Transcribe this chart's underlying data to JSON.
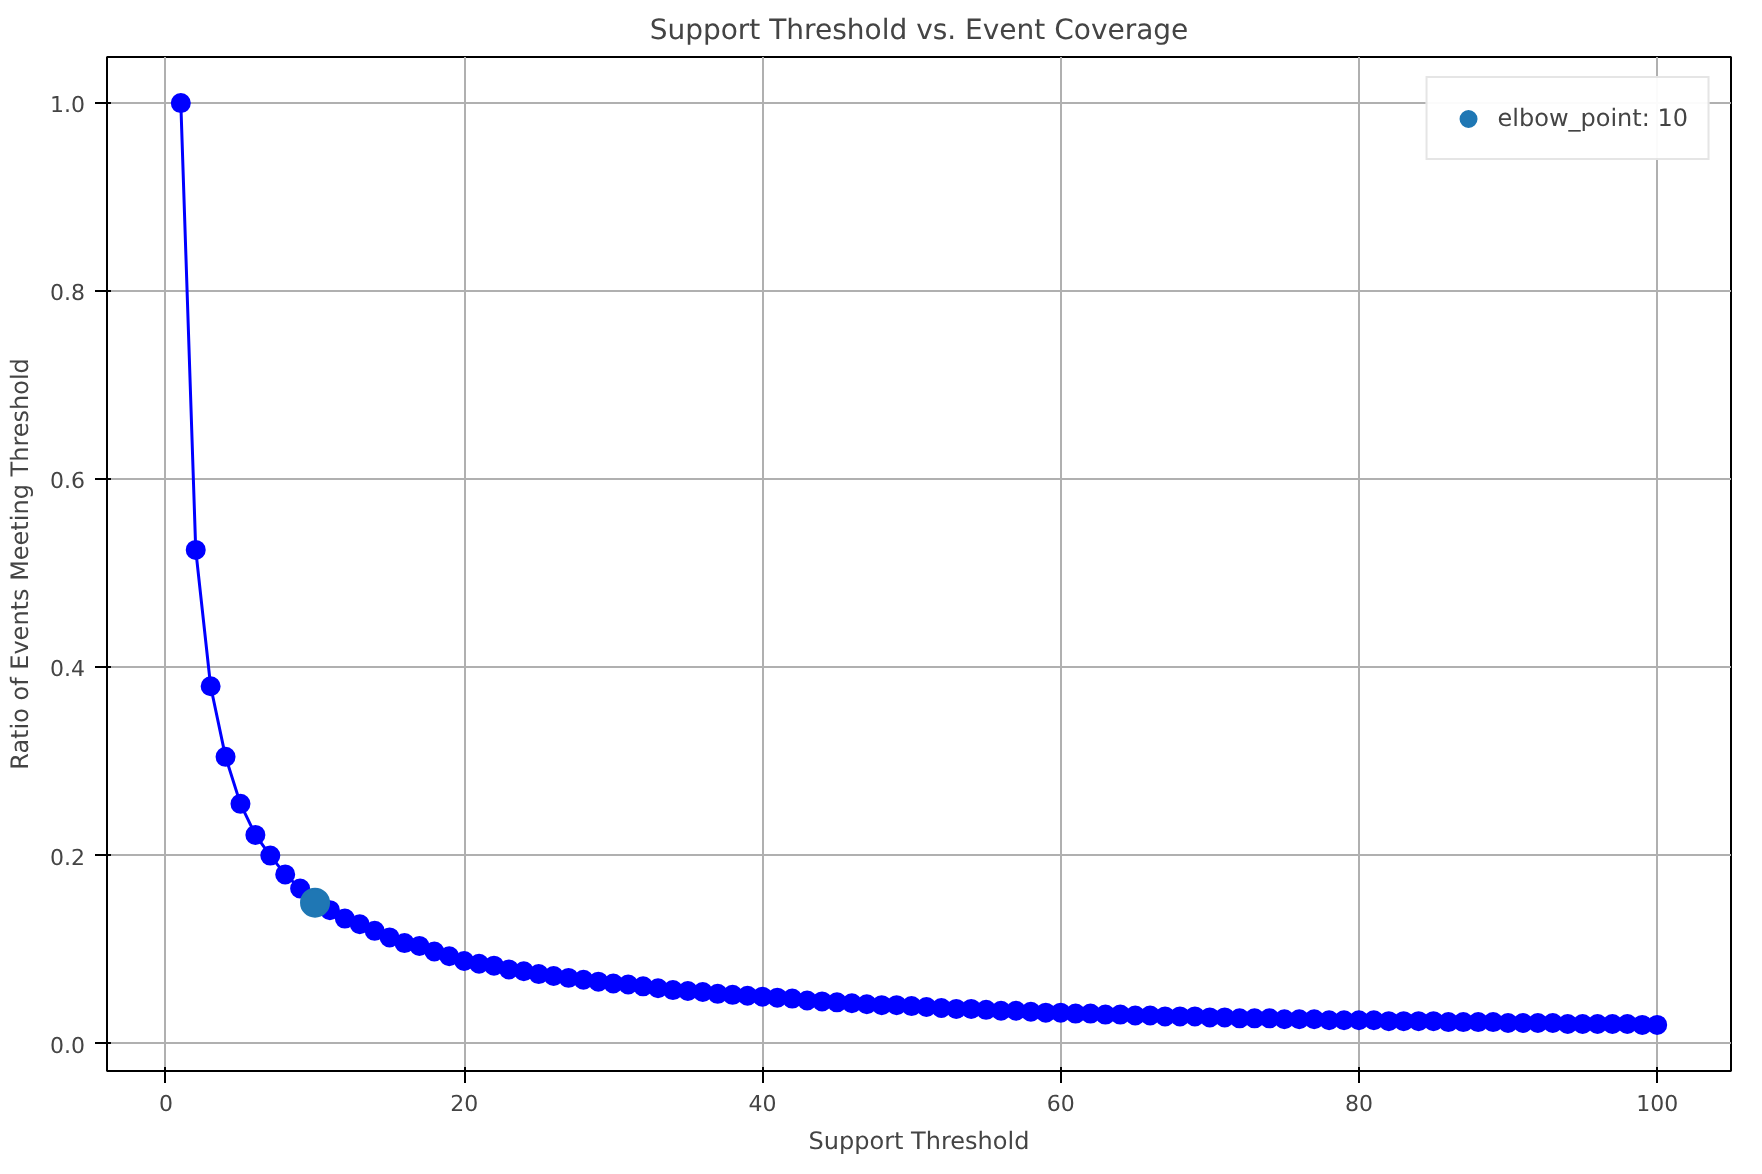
{
  "chart_data": {
    "type": "line",
    "title": "Support Threshold vs. Event Coverage",
    "xlabel": "Support Threshold",
    "ylabel": "Ratio of Events Meeting Threshold",
    "xlim": [
      -3.95,
      104.95
    ],
    "ylim": [
      -0.029,
      1.049
    ],
    "xticks": [
      0,
      20,
      40,
      60,
      80,
      100
    ],
    "yticks": [
      {
        "value": 0,
        "label": "0.0"
      },
      {
        "value": 0.2,
        "label": "0.2"
      },
      {
        "value": 0.4,
        "label": "0.4"
      },
      {
        "value": 0.6,
        "label": "0.6"
      },
      {
        "value": 0.8,
        "label": "0.8"
      },
      {
        "value": 1.0,
        "label": "1.0"
      }
    ],
    "grid": true,
    "legend": "top right",
    "marker": "circle",
    "line_style": "solid",
    "series": [
      {
        "color": "#0000ff",
        "x": [
          1,
          2,
          3,
          4,
          5,
          6,
          7,
          8,
          9,
          10,
          11,
          12,
          13,
          14,
          15,
          16,
          17,
          18,
          19,
          20,
          21,
          22,
          23,
          24,
          25,
          26,
          27,
          28,
          29,
          30,
          31,
          32,
          33,
          34,
          35,
          36,
          37,
          38,
          39,
          40,
          41,
          42,
          43,
          44,
          45,
          46,
          47,
          48,
          49,
          50,
          51,
          52,
          53,
          54,
          55,
          56,
          57,
          58,
          59,
          60,
          61,
          62,
          63,
          64,
          65,
          66,
          67,
          68,
          69,
          70,
          71,
          72,
          73,
          74,
          75,
          76,
          77,
          78,
          79,
          80,
          81,
          82,
          83,
          84,
          85,
          86,
          87,
          88,
          89,
          90,
          91,
          92,
          93,
          94,
          95,
          96,
          97,
          98,
          99,
          100
        ],
        "values": [
          1.0,
          0.525,
          0.38,
          0.305,
          0.255,
          0.222,
          0.2,
          0.18,
          0.165,
          0.15,
          0.142,
          0.133,
          0.127,
          0.12,
          0.113,
          0.107,
          0.104,
          0.098,
          0.093,
          0.088,
          0.085,
          0.083,
          0.079,
          0.077,
          0.074,
          0.072,
          0.07,
          0.068,
          0.066,
          0.064,
          0.063,
          0.061,
          0.059,
          0.057,
          0.056,
          0.055,
          0.053,
          0.052,
          0.051,
          0.05,
          0.049,
          0.048,
          0.046,
          0.045,
          0.044,
          0.043,
          0.042,
          0.041,
          0.041,
          0.04,
          0.039,
          0.038,
          0.037,
          0.037,
          0.036,
          0.035,
          0.035,
          0.034,
          0.033,
          0.033,
          0.032,
          0.032,
          0.031,
          0.031,
          0.03,
          0.03,
          0.029,
          0.029,
          0.029,
          0.028,
          0.028,
          0.027,
          0.027,
          0.027,
          0.026,
          0.026,
          0.026,
          0.025,
          0.025,
          0.025,
          0.025,
          0.024,
          0.024,
          0.024,
          0.024,
          0.023,
          0.023,
          0.023,
          0.023,
          0.022,
          0.022,
          0.022,
          0.022,
          0.021,
          0.021,
          0.021,
          0.021,
          0.021,
          0.02,
          0.02
        ]
      },
      {
        "type": "scatter",
        "name": "elbow_point: 10",
        "color": "#1f77b4",
        "x": [
          10
        ],
        "values": [
          0.15
        ]
      }
    ]
  }
}
